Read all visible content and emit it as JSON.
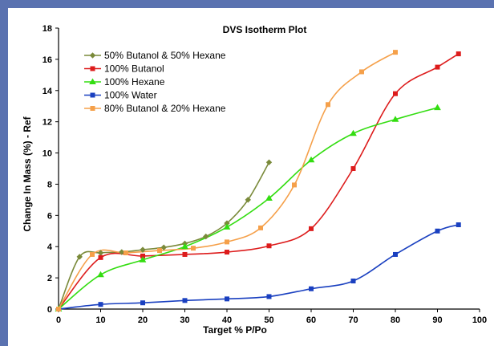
{
  "chart_data": {
    "type": "line",
    "title": "DVS Isotherm Plot",
    "xlabel": "Target % P/Po",
    "ylabel": "Change In Mass (%) - Ref",
    "xlim": [
      0,
      100
    ],
    "ylim": [
      0,
      18
    ],
    "x_ticks": [
      0,
      10,
      20,
      30,
      40,
      50,
      60,
      70,
      80,
      90,
      100
    ],
    "y_ticks": [
      0,
      2,
      4,
      6,
      8,
      10,
      12,
      14,
      16,
      18
    ],
    "grid": false,
    "legend_position": "top-left",
    "series": [
      {
        "name": "50% Butanol & 50% Hexane",
        "color": "#7a8a3a",
        "marker": "diamond",
        "points": [
          [
            0,
            0
          ],
          [
            5,
            3.35
          ],
          [
            10,
            3.6
          ],
          [
            15,
            3.65
          ],
          [
            20,
            3.8
          ],
          [
            25,
            3.95
          ],
          [
            30,
            4.2
          ],
          [
            35,
            4.65
          ],
          [
            40,
            5.5
          ],
          [
            45,
            7.0
          ],
          [
            50,
            9.4
          ]
        ]
      },
      {
        "name": "100% Butanol",
        "color": "#dd1c1c",
        "marker": "square",
        "points": [
          [
            0,
            0
          ],
          [
            10,
            3.3
          ],
          [
            20,
            3.4
          ],
          [
            30,
            3.5
          ],
          [
            40,
            3.65
          ],
          [
            50,
            4.05
          ],
          [
            60,
            5.15
          ],
          [
            70,
            9.0
          ],
          [
            80,
            13.8
          ],
          [
            90,
            15.5
          ],
          [
            95,
            16.35
          ]
        ]
      },
      {
        "name": "100% Hexane",
        "color": "#33dd11",
        "marker": "triangle",
        "points": [
          [
            0,
            0
          ],
          [
            10,
            2.2
          ],
          [
            20,
            3.15
          ],
          [
            30,
            4.0
          ],
          [
            40,
            5.25
          ],
          [
            50,
            7.1
          ],
          [
            60,
            9.55
          ],
          [
            70,
            11.25
          ],
          [
            80,
            12.15
          ],
          [
            90,
            12.9
          ]
        ]
      },
      {
        "name": "100% Water",
        "color": "#1a40c0",
        "marker": "square",
        "points": [
          [
            0,
            0
          ],
          [
            10,
            0.3
          ],
          [
            20,
            0.4
          ],
          [
            30,
            0.55
          ],
          [
            40,
            0.65
          ],
          [
            50,
            0.8
          ],
          [
            60,
            1.3
          ],
          [
            70,
            1.8
          ],
          [
            80,
            3.5
          ],
          [
            90,
            5.0
          ],
          [
            95,
            5.4
          ]
        ]
      },
      {
        "name": "80% Butanol & 20% Hexane",
        "color": "#f5a04a",
        "marker": "square",
        "points": [
          [
            0,
            0
          ],
          [
            8,
            3.5
          ],
          [
            16,
            3.6
          ],
          [
            24,
            3.75
          ],
          [
            32,
            3.9
          ],
          [
            40,
            4.3
          ],
          [
            48,
            5.2
          ],
          [
            56,
            7.95
          ],
          [
            64,
            13.1
          ],
          [
            72,
            15.2
          ],
          [
            80,
            16.45
          ]
        ]
      }
    ]
  }
}
